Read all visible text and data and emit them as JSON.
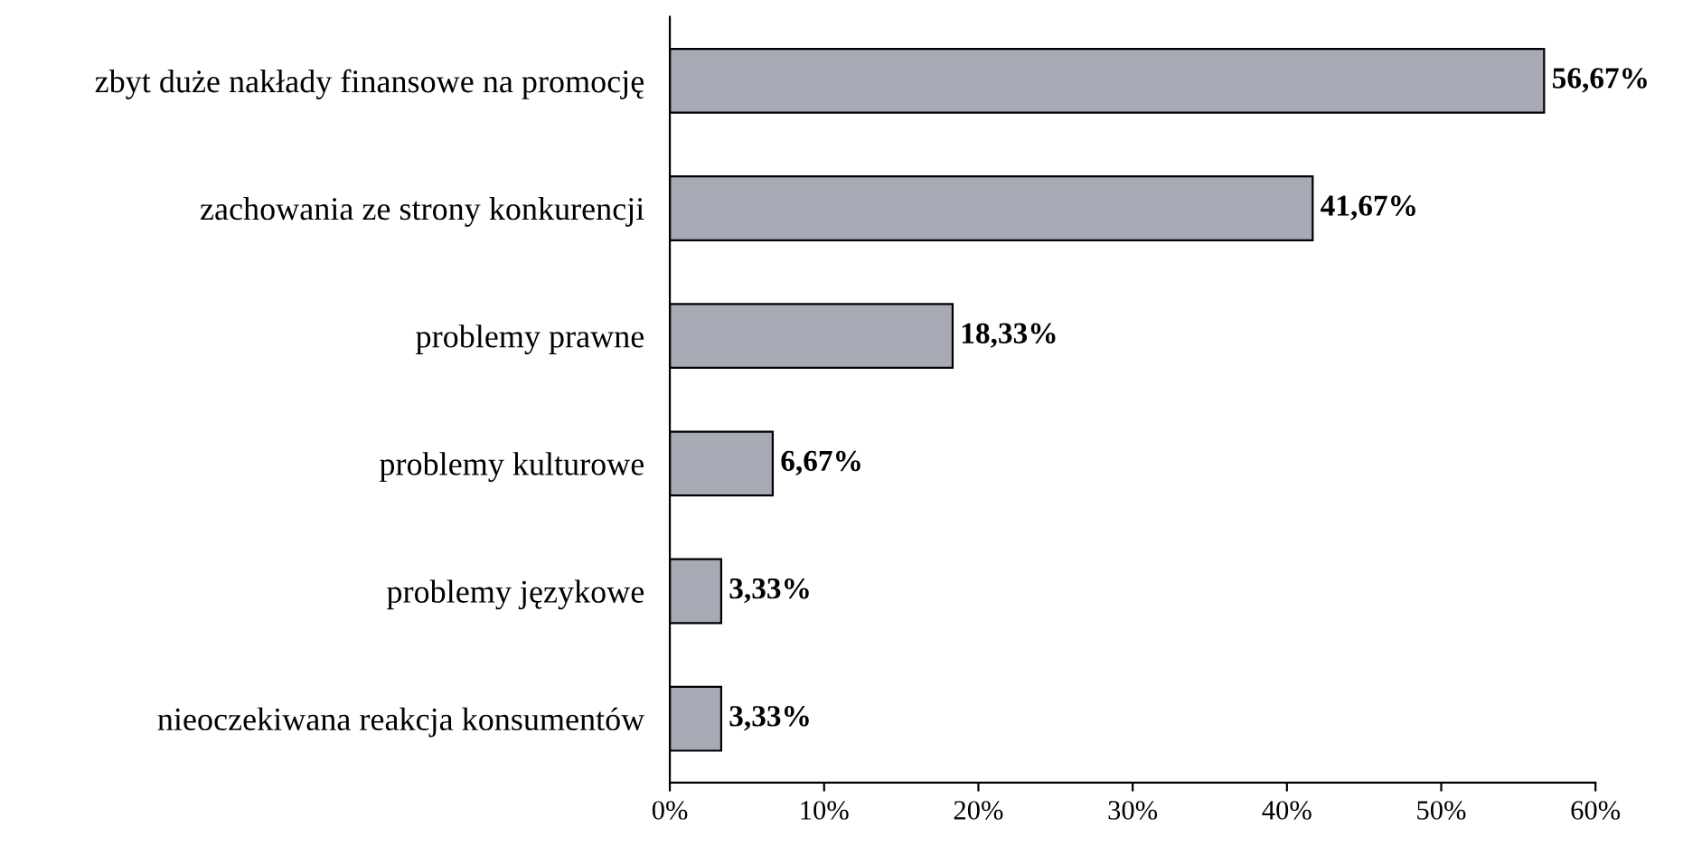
{
  "chart_data": {
    "type": "bar",
    "orientation": "horizontal",
    "categories": [
      "zbyt duże nakłady finansowe na promocję",
      "zachowania ze strony konkurencji",
      "problemy prawne",
      "problemy kulturowe",
      "problemy językowe",
      "nieoczekiwana reakcja konsumentów"
    ],
    "values": [
      56.67,
      41.67,
      18.33,
      6.67,
      3.33,
      3.33
    ],
    "value_labels": [
      "56,67%",
      "41,67%",
      "18,33%",
      "6,67%",
      "3,33%",
      "3,33%"
    ],
    "color": "#a7aab5",
    "xlim": [
      0,
      60
    ],
    "xticks": [
      {
        "value": 0,
        "label": "0%"
      },
      {
        "value": 10,
        "label": "10%"
      },
      {
        "value": 20,
        "label": "20%"
      },
      {
        "value": 30,
        "label": "30%"
      },
      {
        "value": 40,
        "label": "40%"
      },
      {
        "value": 50,
        "label": "50%"
      },
      {
        "value": 60,
        "label": "60%"
      }
    ],
    "grid": false,
    "legend": false
  }
}
